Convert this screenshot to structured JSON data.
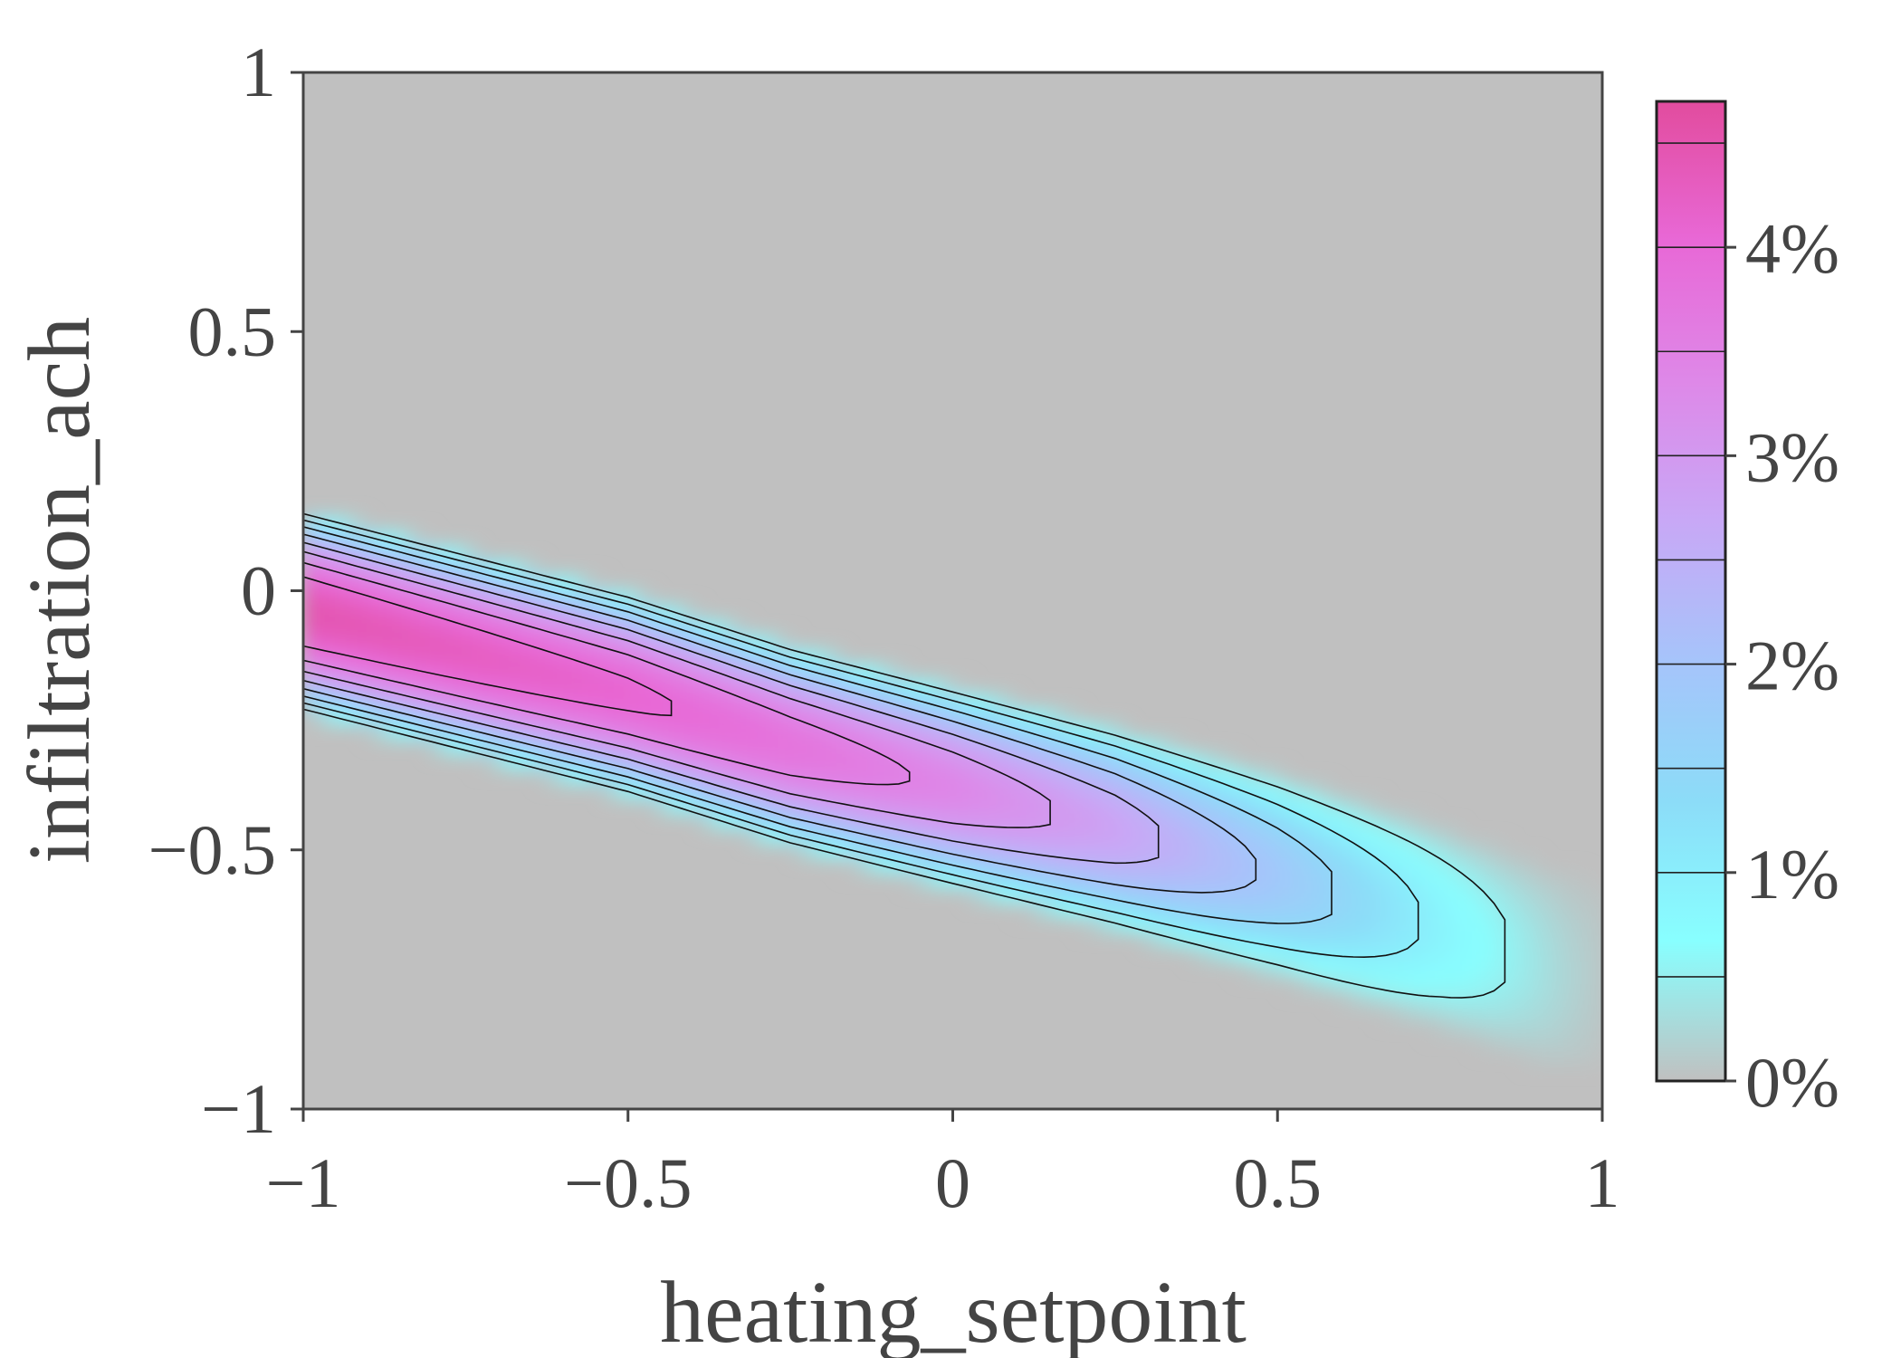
{
  "chart_data": {
    "type": "heatmap",
    "subtype": "2d-density-with-contours",
    "title": "",
    "xlabel": "heating_setpoint",
    "ylabel": "infiltration_ach",
    "xlim": [
      -1,
      1
    ],
    "ylim": [
      -1,
      1
    ],
    "x_ticks": [
      -1,
      -0.5,
      0,
      0.5,
      1
    ],
    "x_tick_labels": [
      "−1",
      "−0.5",
      "0",
      "0.5",
      "1"
    ],
    "y_ticks": [
      -1,
      -0.5,
      0,
      0.5,
      1
    ],
    "y_tick_labels": [
      "−1",
      "−0.5",
      "0",
      "0.5",
      "1"
    ],
    "grid": false,
    "background_color": "#c0c0c0",
    "density_ridge": {
      "x": [
        -1.0,
        -0.75,
        -0.5,
        -0.25,
        0.0,
        0.25,
        0.5,
        0.75,
        0.95
      ],
      "y_center": [
        -0.04,
        -0.12,
        -0.2,
        -0.3,
        -0.38,
        -0.46,
        -0.55,
        -0.65,
        -0.74
      ],
      "peak_percent": [
        4.5,
        4.3,
        4.1,
        3.8,
        3.4,
        2.8,
        1.9,
        0.9,
        0.2
      ]
    },
    "colorbar": {
      "min": 0,
      "max": 4.7,
      "unit": "%",
      "ticks": [
        0,
        1,
        2,
        3,
        4
      ],
      "tick_labels": [
        "0%",
        "1%",
        "2%",
        "3%",
        "4%"
      ],
      "levels": [
        0,
        0.5,
        1,
        1.5,
        2,
        2.5,
        3,
        3.5,
        4,
        4.5
      ],
      "colors": [
        "#c0c0c0",
        "#88ffff",
        "#8cdcf8",
        "#a6c4fa",
        "#c8a8f6",
        "#de88e8",
        "#e868d6",
        "#e24c9e"
      ]
    },
    "contour_levels": [
      0.5,
      1,
      1.5,
      2,
      2.5,
      3,
      3.5,
      4,
      4.5
    ]
  }
}
